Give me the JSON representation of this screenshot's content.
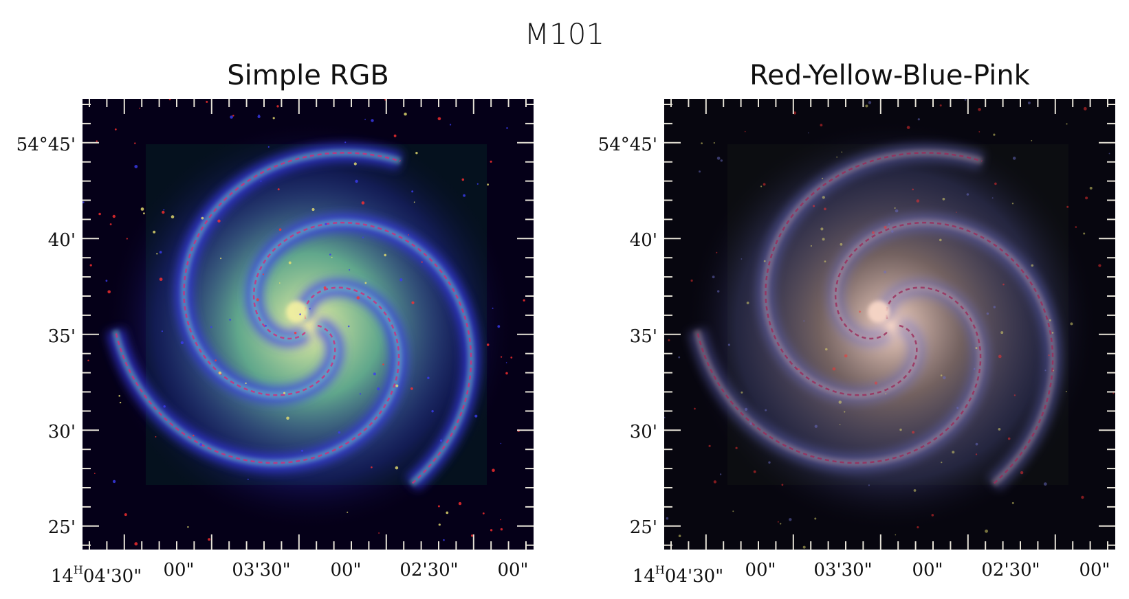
{
  "title": "M101",
  "panels": [
    {
      "id": "left",
      "title": "Simple RGB",
      "colors": {
        "disk_core": "#f2f0a0",
        "disk_mid": "#7fd9b0",
        "arm_outer": "#3b3cf0",
        "dust_lanes": "#d22a7a",
        "background": "#050018"
      }
    },
    {
      "id": "right",
      "title": "Red-Yellow-Blue-Pink",
      "colors": {
        "disk_core": "#f7d6c6",
        "disk_mid": "#c7a6a0",
        "arm_outer": "#6c6ec8",
        "dust_lanes": "#9b2a5a",
        "background": "#07060f"
      }
    }
  ],
  "y_tick_labels": [
    "54°45'",
    "40'",
    "35'",
    "30'",
    "25'"
  ],
  "x_tick_labels": {
    "hours": "14",
    "hours_unit": "H",
    "first": "04'30\"",
    "rest": [
      "00\"",
      "03'30\"",
      "00\"",
      "02'30\"",
      "00\""
    ]
  }
}
